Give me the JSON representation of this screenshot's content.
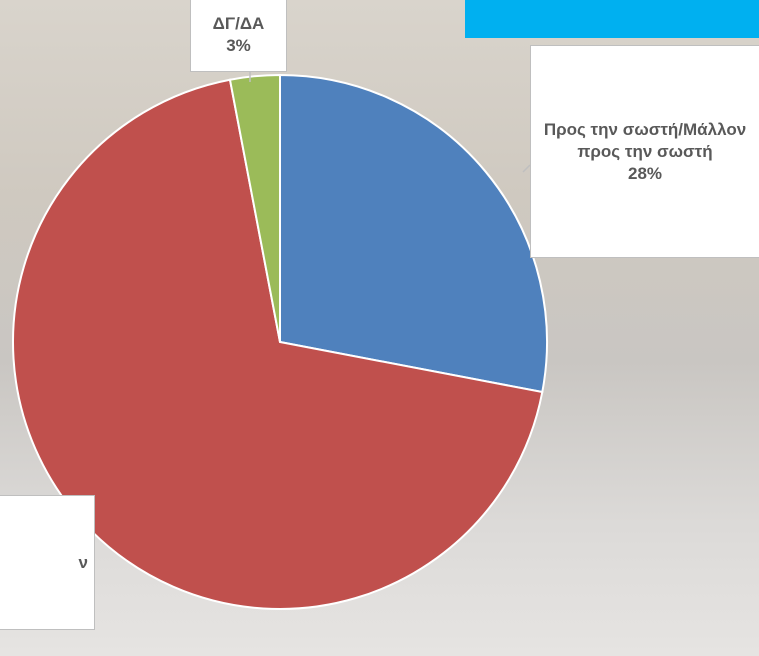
{
  "chart_data": {
    "type": "pie",
    "categories": [
      "Προς την σωστή/Μάλλον προς την σωστή",
      "ν",
      "ΔΓ/ΔΑ"
    ],
    "values": [
      28,
      69,
      3
    ],
    "value_labels": [
      "28%",
      null,
      "3%"
    ],
    "colors": [
      "#4f81bd",
      "#c0504d",
      "#9bbb59"
    ]
  }
}
